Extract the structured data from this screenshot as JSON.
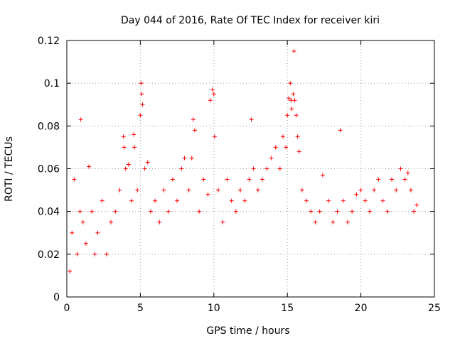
{
  "chart_data": {
    "type": "scatter",
    "title": "Day 044 of 2016, Rate Of TEC Index for receiver kiri",
    "xlabel": "GPS time / hours",
    "ylabel": "ROTI / TECUs",
    "xlim": [
      0,
      25
    ],
    "ylim": [
      0,
      0.12
    ],
    "xticks": [
      0,
      5,
      10,
      15,
      20,
      25
    ],
    "yticks": [
      0,
      0.02,
      0.04,
      0.06,
      0.08,
      0.1,
      0.12
    ],
    "xtick_labels": [
      "0",
      "5",
      "10",
      "15",
      "20",
      "25"
    ],
    "ytick_labels": [
      "0",
      "0.02",
      "0.04",
      "0.06",
      "0.08",
      "0.1",
      "0.12"
    ],
    "grid": true,
    "marker": "+",
    "color": "#ff0000",
    "series": [
      {
        "name": "ROTI",
        "x": [
          0.2,
          0.35,
          0.5,
          0.7,
          0.9,
          0.95,
          1.1,
          1.3,
          1.5,
          1.7,
          1.9,
          2.1,
          2.4,
          2.7,
          3.0,
          3.3,
          3.6,
          3.85,
          3.9,
          4.0,
          4.2,
          4.4,
          4.55,
          4.6,
          4.8,
          5.0,
          5.05,
          5.1,
          5.15,
          5.3,
          5.5,
          5.7,
          6.0,
          6.3,
          6.6,
          6.9,
          7.2,
          7.5,
          7.8,
          8.0,
          8.3,
          8.5,
          8.6,
          8.7,
          9.0,
          9.3,
          9.6,
          9.75,
          9.9,
          10.0,
          10.05,
          10.3,
          10.6,
          10.9,
          11.2,
          11.5,
          11.8,
          12.1,
          12.4,
          12.55,
          12.7,
          13.0,
          13.3,
          13.6,
          13.9,
          14.2,
          14.5,
          14.7,
          14.9,
          15.0,
          15.1,
          15.2,
          15.25,
          15.3,
          15.4,
          15.45,
          15.5,
          15.6,
          15.7,
          15.8,
          16.0,
          16.3,
          16.6,
          16.9,
          17.2,
          17.4,
          17.8,
          18.1,
          18.4,
          18.6,
          18.8,
          19.1,
          19.4,
          19.7,
          20.0,
          20.3,
          20.6,
          20.9,
          21.2,
          21.5,
          21.8,
          22.1,
          22.4,
          22.7,
          23.0,
          23.2,
          23.4,
          23.6,
          23.8
        ],
        "y": [
          0.012,
          0.03,
          0.055,
          0.02,
          0.04,
          0.083,
          0.035,
          0.025,
          0.061,
          0.04,
          0.02,
          0.03,
          0.045,
          0.02,
          0.035,
          0.04,
          0.05,
          0.075,
          0.07,
          0.06,
          0.062,
          0.045,
          0.076,
          0.07,
          0.05,
          0.085,
          0.1,
          0.095,
          0.09,
          0.06,
          0.063,
          0.04,
          0.045,
          0.035,
          0.05,
          0.04,
          0.055,
          0.045,
          0.06,
          0.065,
          0.05,
          0.065,
          0.083,
          0.078,
          0.04,
          0.055,
          0.048,
          0.092,
          0.097,
          0.095,
          0.075,
          0.05,
          0.035,
          0.055,
          0.045,
          0.04,
          0.05,
          0.045,
          0.055,
          0.083,
          0.06,
          0.05,
          0.055,
          0.06,
          0.065,
          0.07,
          0.06,
          0.075,
          0.07,
          0.085,
          0.093,
          0.1,
          0.092,
          0.088,
          0.095,
          0.115,
          0.092,
          0.085,
          0.075,
          0.068,
          0.05,
          0.045,
          0.04,
          0.035,
          0.04,
          0.057,
          0.045,
          0.035,
          0.04,
          0.078,
          0.045,
          0.035,
          0.04,
          0.048,
          0.05,
          0.045,
          0.04,
          0.05,
          0.055,
          0.045,
          0.04,
          0.055,
          0.05,
          0.06,
          0.055,
          0.058,
          0.05,
          0.04,
          0.043
        ]
      }
    ]
  }
}
